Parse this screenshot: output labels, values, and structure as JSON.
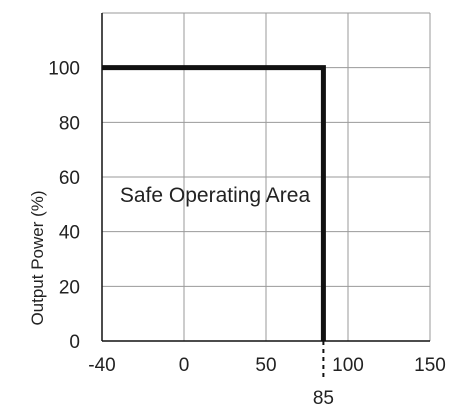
{
  "chart_data": {
    "type": "line",
    "ylabel": "Output Power (%)",
    "xlabel": "",
    "x_ticks": [
      -40,
      0,
      50,
      100,
      150
    ],
    "y_ticks": [
      0,
      20,
      40,
      60,
      80,
      100
    ],
    "xlim": [
      -40,
      150
    ],
    "ylim": [
      0,
      120
    ],
    "grid": true,
    "series": [
      {
        "x": [
          -40,
          85,
          85
        ],
        "y": [
          100,
          100,
          0
        ]
      }
    ],
    "annotations": {
      "region_label": "Safe Operating Area",
      "marker_value": "85",
      "marker_x": 85
    },
    "colors": {
      "line": "#111111",
      "grid": "#9a9a9a",
      "frame": "#111111"
    }
  }
}
